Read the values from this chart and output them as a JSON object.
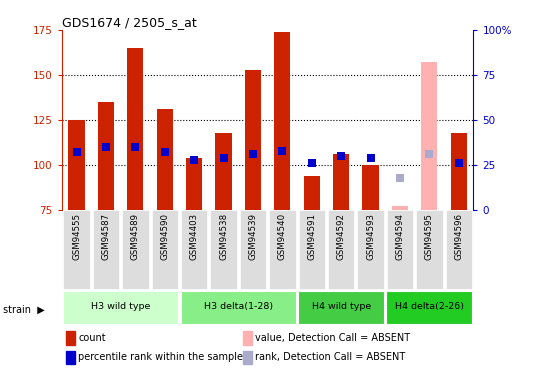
{
  "title": "GDS1674 / 2505_s_at",
  "samples": [
    "GSM94555",
    "GSM94587",
    "GSM94589",
    "GSM94590",
    "GSM94403",
    "GSM94538",
    "GSM94539",
    "GSM94540",
    "GSM94591",
    "GSM94592",
    "GSM94593",
    "GSM94594",
    "GSM94595",
    "GSM94596"
  ],
  "bar_values": [
    125,
    135,
    165,
    131,
    104,
    118,
    153,
    174,
    94,
    106,
    100,
    77,
    157,
    118
  ],
  "bar_colors": [
    "#cc2200",
    "#cc2200",
    "#cc2200",
    "#cc2200",
    "#cc2200",
    "#cc2200",
    "#cc2200",
    "#cc2200",
    "#cc2200",
    "#cc2200",
    "#cc2200",
    "#ffb0b0",
    "#ffb0b0",
    "#cc2200"
  ],
  "rank_values": [
    107,
    110,
    110,
    107,
    103,
    104,
    106,
    108,
    101,
    105,
    104,
    null,
    106,
    101
  ],
  "rank_colors": [
    "#0000cc",
    "#0000cc",
    "#0000cc",
    "#0000cc",
    "#0000cc",
    "#0000cc",
    "#0000cc",
    "#0000cc",
    "#0000cc",
    "#0000cc",
    "#0000cc",
    null,
    "#aaaacc",
    "#0000cc"
  ],
  "absent_rank_value": 93,
  "absent_rank_color": "#aaaacc",
  "ymin": 75,
  "ymax": 175,
  "yticks_left": [
    75,
    100,
    125,
    150,
    175
  ],
  "yticks_right_pos": [
    75,
    100,
    125,
    150,
    175
  ],
  "yticks_right_labels": [
    "0",
    "25",
    "50",
    "75",
    "100%"
  ],
  "grid_lines": [
    100,
    125,
    150
  ],
  "groups": [
    {
      "label": "H3 wild type",
      "start": 0,
      "end": 3,
      "color": "#ccffcc"
    },
    {
      "label": "H3 delta(1-28)",
      "start": 4,
      "end": 7,
      "color": "#88ee88"
    },
    {
      "label": "H4 wild type",
      "start": 8,
      "end": 10,
      "color": "#44cc44"
    },
    {
      "label": "H4 delta(2-26)",
      "start": 11,
      "end": 13,
      "color": "#22cc22"
    }
  ],
  "legend_items": [
    {
      "label": "count",
      "color": "#cc2200",
      "col": 0
    },
    {
      "label": "percentile rank within the sample",
      "color": "#0000cc",
      "col": 0
    },
    {
      "label": "value, Detection Call = ABSENT",
      "color": "#ffb0b0",
      "col": 1
    },
    {
      "label": "rank, Detection Call = ABSENT",
      "color": "#aaaacc",
      "col": 1
    }
  ],
  "bar_width": 0.55,
  "rank_marker_size": 30,
  "bg_color": "#ffffff",
  "label_bg_color": "#dddddd",
  "plot_bg_color": "#ffffff",
  "left_spine_color": "#cc2200",
  "right_spine_color": "#0000cc"
}
